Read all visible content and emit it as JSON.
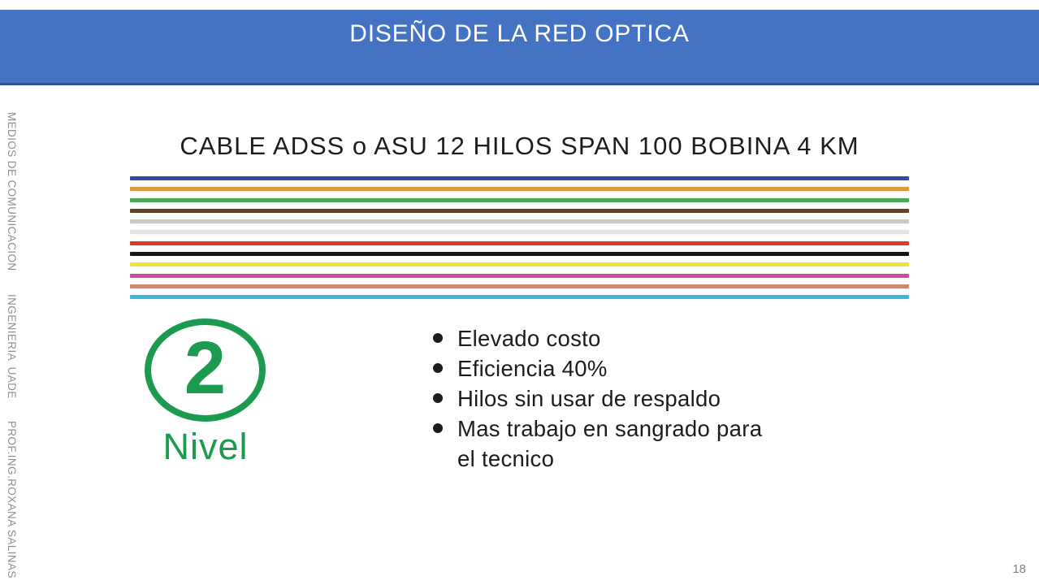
{
  "header": {
    "title": "DISEÑO DE LA RED OPTICA",
    "bg_color": "#4573c4"
  },
  "sidebar": {
    "segments": [
      "MEDIOS DE COMUNICACION",
      "INGENIERIA  UADE",
      "PROF.ING.ROXANA SALINAS"
    ]
  },
  "figure": {
    "title": "CABLE ADSS o ASU 12 HILOS SPAN 100 BOBINA 4 KM",
    "cable": {
      "fiber_count": 12,
      "fibers": [
        {
          "name": "azul",
          "color": "#2e4b9d"
        },
        {
          "name": "naranja",
          "color": "#dd9940"
        },
        {
          "name": "verde",
          "color": "#4fa653"
        },
        {
          "name": "marron",
          "color": "#5d451f"
        },
        {
          "name": "gris",
          "color": "#c9c9c7"
        },
        {
          "name": "blanco",
          "color": "#e3e3df"
        },
        {
          "name": "rojo",
          "color": "#d93a2b"
        },
        {
          "name": "negro",
          "color": "#161616"
        },
        {
          "name": "amarillo",
          "color": "#ece43b"
        },
        {
          "name": "violeta",
          "color": "#c64f9e"
        },
        {
          "name": "rosa",
          "color": "#c78a72"
        },
        {
          "name": "aqua",
          "color": "#3fb7da"
        }
      ]
    },
    "level": {
      "number": "2",
      "label": "Nivel",
      "color": "#1c9a50"
    },
    "bullets": [
      "Elevado costo",
      "Eficiencia 40%",
      "Hilos sin usar de respaldo",
      "Mas trabajo en sangrado para\nel tecnico"
    ]
  },
  "footer": {
    "page_number": "18"
  }
}
